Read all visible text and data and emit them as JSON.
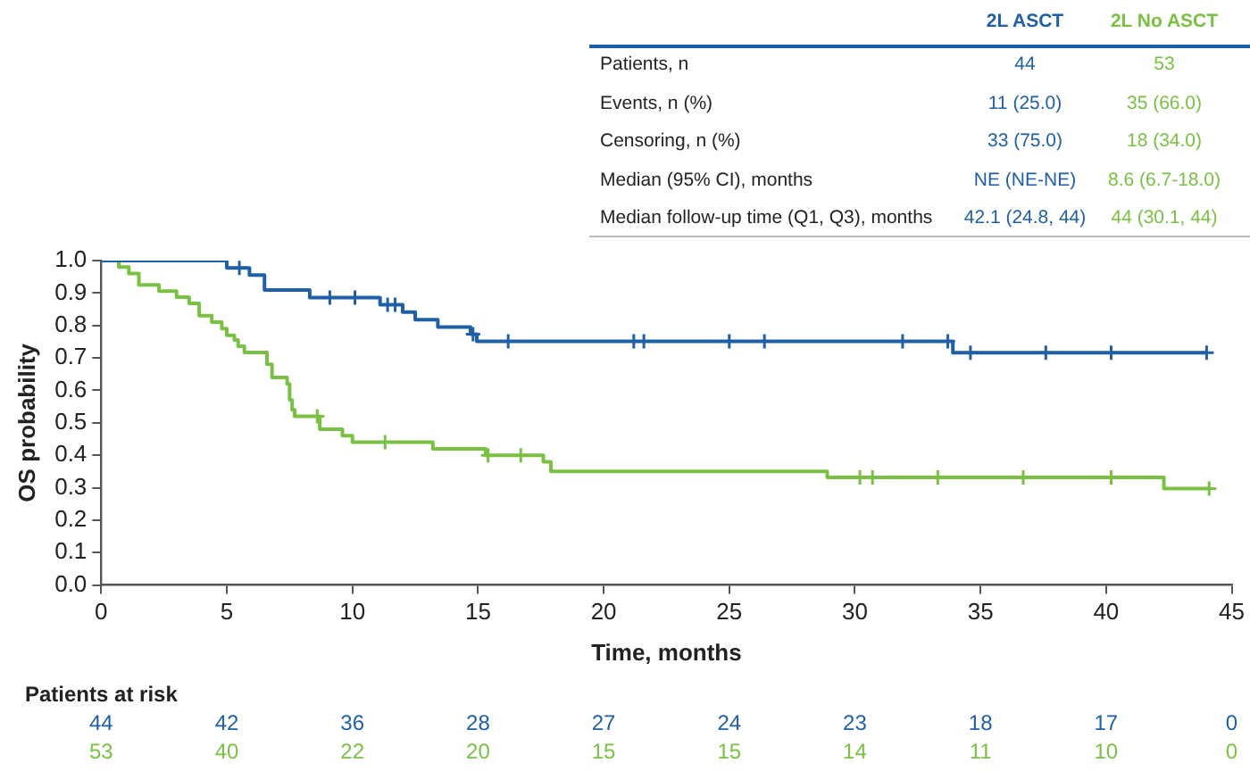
{
  "chart_data": {
    "type": "step",
    "xlabel": "Time, months",
    "ylabel": "OS probability",
    "xlim": [
      0,
      45
    ],
    "xticks": [
      0,
      5,
      10,
      15,
      20,
      25,
      30,
      35,
      40,
      45
    ],
    "ylim": [
      0,
      1
    ],
    "yticks": [
      {
        "value": 0,
        "label": "0.0"
      },
      0.1,
      0.2,
      0.3,
      0.4,
      0.5,
      0.6,
      0.7,
      0.8,
      0.9,
      {
        "value": 1,
        "label": "1.0"
      }
    ],
    "grid": false,
    "legend": "top right",
    "series": [
      {
        "name": "2L ASCT",
        "color": "#1f5fa6",
        "x": [
          0,
          5.0,
          5.9,
          6.5,
          8.3,
          11.1,
          12.0,
          12.5,
          13.4,
          14.7,
          14.95,
          33.9,
          44.0
        ],
        "values": [
          1.0,
          0.977,
          0.955,
          0.909,
          0.886,
          0.864,
          0.841,
          0.818,
          0.795,
          0.773,
          0.751,
          0.716,
          0.716
        ]
      },
      {
        "name": "2L No ASCT",
        "color": "#7ac143",
        "x": [
          0,
          0.7,
          1.1,
          1.5,
          2.3,
          3.0,
          3.5,
          3.9,
          4.4,
          4.8,
          5.0,
          5.3,
          5.45,
          5.7,
          6.6,
          6.8,
          7.4,
          7.5,
          7.6,
          7.7,
          8.7,
          9.6,
          10.0,
          13.2,
          15.3,
          17.6,
          17.9,
          28.9,
          42.3,
          44.1
        ],
        "values": [
          1.0,
          0.98,
          0.96,
          0.925,
          0.906,
          0.887,
          0.868,
          0.83,
          0.81,
          0.79,
          0.77,
          0.755,
          0.736,
          0.717,
          0.68,
          0.64,
          0.62,
          0.57,
          0.54,
          0.52,
          0.48,
          0.46,
          0.44,
          0.42,
          0.4,
          0.38,
          0.35,
          0.332,
          0.297,
          0.297
        ]
      },
      {
        "type": "scatter",
        "marker": "cross",
        "color": "#1f5fa6",
        "x": [
          5.5,
          9.1,
          10.1,
          11.4,
          11.7,
          14.8,
          16.2,
          21.2,
          21.6,
          25.0,
          26.4,
          31.9,
          33.7,
          34.6,
          37.6,
          40.2,
          44.0
        ],
        "values": [
          0.977,
          0.886,
          0.886,
          0.864,
          0.864,
          0.773,
          0.751,
          0.751,
          0.751,
          0.751,
          0.751,
          0.751,
          0.751,
          0.716,
          0.716,
          0.716,
          0.716
        ]
      },
      {
        "type": "scatter",
        "marker": "cross",
        "color": "#7ac143",
        "x": [
          8.6,
          11.3,
          15.4,
          16.7,
          30.2,
          30.7,
          33.3,
          36.7,
          40.2,
          44.1
        ],
        "values": [
          0.52,
          0.44,
          0.4,
          0.4,
          0.332,
          0.332,
          0.332,
          0.332,
          0.332,
          0.297
        ]
      }
    ],
    "annotations": [
      "Patients, n",
      "44",
      "53",
      "Events, n (%)",
      "11 (25.0)",
      "35 (66.0)",
      "Censoring, n (%)",
      "33 (75.0)",
      "18 (34.0)",
      "Median (95% CI), months",
      "NE (NE-NE)",
      "8.6 (6.7-18.0)",
      "Median follow-up time (Q1, Q3), months",
      "42.1 (24.8, 44)",
      "44 (30.1, 44)",
      "Patients at risk",
      "44",
      "42",
      "36",
      "28",
      "27",
      "24",
      "23",
      "18",
      "17",
      "0",
      "53",
      "40",
      "22",
      "20",
      "15",
      "15",
      "14",
      "11",
      "10",
      "0"
    ]
  }
}
